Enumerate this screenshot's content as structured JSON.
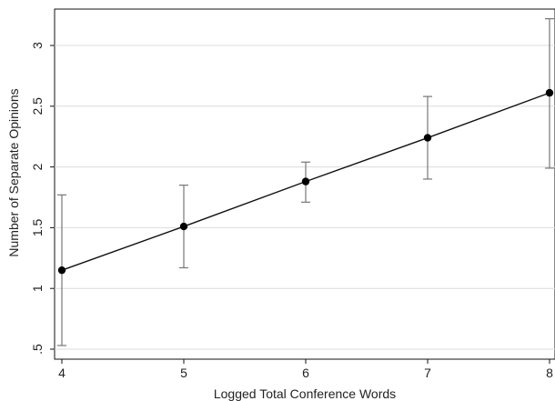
{
  "chart_data": {
    "type": "scatter",
    "title": "",
    "xlabel": "Logged Total Conference Words",
    "ylabel": "Number of Separate Opinions",
    "xlim": [
      4,
      8
    ],
    "ylim": [
      0.5,
      3.25
    ],
    "x_ticks": [
      4,
      5,
      6,
      7,
      8
    ],
    "x_tick_labels": [
      "4",
      "5",
      "6",
      "7",
      "8"
    ],
    "y_ticks": [
      0.5,
      1,
      1.5,
      2,
      2.5,
      3
    ],
    "y_tick_labels": [
      ".5",
      "1",
      "1.5",
      "2",
      "2.5",
      "3"
    ],
    "grid": true,
    "legend": "none",
    "colors": {
      "points": "#000000",
      "line": "#111111",
      "error_bars": "#777777",
      "grid": "#dcdcdc"
    },
    "series": [
      {
        "x": [
          4,
          5,
          6,
          7,
          8
        ],
        "y": [
          1.15,
          1.51,
          1.88,
          2.24,
          2.61
        ],
        "ci_low": [
          0.53,
          1.17,
          1.71,
          1.9,
          1.99
        ],
        "ci_high": [
          1.77,
          1.85,
          2.04,
          2.58,
          3.22
        ]
      }
    ]
  }
}
